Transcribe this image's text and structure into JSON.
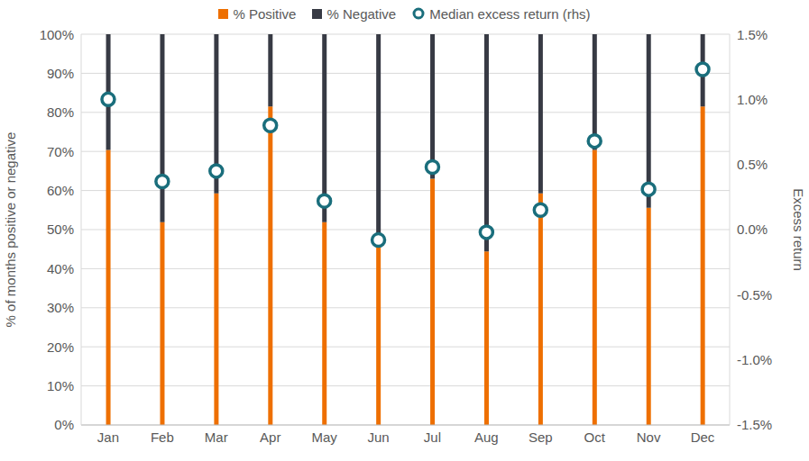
{
  "chart_data": {
    "type": "bar",
    "stacked": true,
    "grid": true,
    "legend": "top",
    "categories": [
      "Jan",
      "Feb",
      "Mar",
      "Apr",
      "May",
      "Jun",
      "Jul",
      "Aug",
      "Sep",
      "Oct",
      "Nov",
      "Dec"
    ],
    "ylabel": "% of months positive or negative",
    "y2label": "Excess return",
    "ylim": [
      0,
      100
    ],
    "yticks": [
      {
        "value": 0,
        "label": "0%"
      },
      {
        "value": 10,
        "label": "10%"
      },
      {
        "value": 20,
        "label": "20%"
      },
      {
        "value": 30,
        "label": "30%"
      },
      {
        "value": 40,
        "label": "40%"
      },
      {
        "value": 50,
        "label": "50%"
      },
      {
        "value": 60,
        "label": "60%"
      },
      {
        "value": 70,
        "label": "70%"
      },
      {
        "value": 80,
        "label": "80%"
      },
      {
        "value": 90,
        "label": "90%"
      },
      {
        "value": 100,
        "label": "100%"
      }
    ],
    "y2lim": [
      -1.5,
      1.5
    ],
    "y2ticks": [
      {
        "value": -1.5,
        "label": "-1.5%"
      },
      {
        "value": -1,
        "label": "-1.0%"
      },
      {
        "value": -0.5,
        "label": "-0.5%"
      },
      {
        "value": 0,
        "label": "0.0%"
      },
      {
        "value": 0.5,
        "label": "0.5%"
      },
      {
        "value": 1,
        "label": "1.0%"
      },
      {
        "value": 1.5,
        "label": "1.5%"
      }
    ],
    "series": [
      {
        "name": "% Positive",
        "color": "#EE6F00",
        "values": [
          70.4,
          51.9,
          59.3,
          81.5,
          51.9,
          48.1,
          63.0,
          44.4,
          59.3,
          70.4,
          55.6,
          81.5
        ]
      },
      {
        "name": "% Negative",
        "color": "#373A44",
        "values": [
          29.6,
          48.1,
          40.7,
          18.5,
          48.1,
          51.9,
          37.0,
          55.6,
          40.7,
          29.6,
          44.4,
          18.5
        ]
      },
      {
        "name": "Median excess return (rhs)",
        "type": "scatter",
        "axis": "y2",
        "marker": "circle",
        "color": "#1A6E7C",
        "values": [
          1.0,
          0.37,
          0.45,
          0.8,
          0.22,
          -0.08,
          0.48,
          -0.02,
          0.15,
          0.68,
          0.31,
          1.23
        ]
      }
    ]
  }
}
